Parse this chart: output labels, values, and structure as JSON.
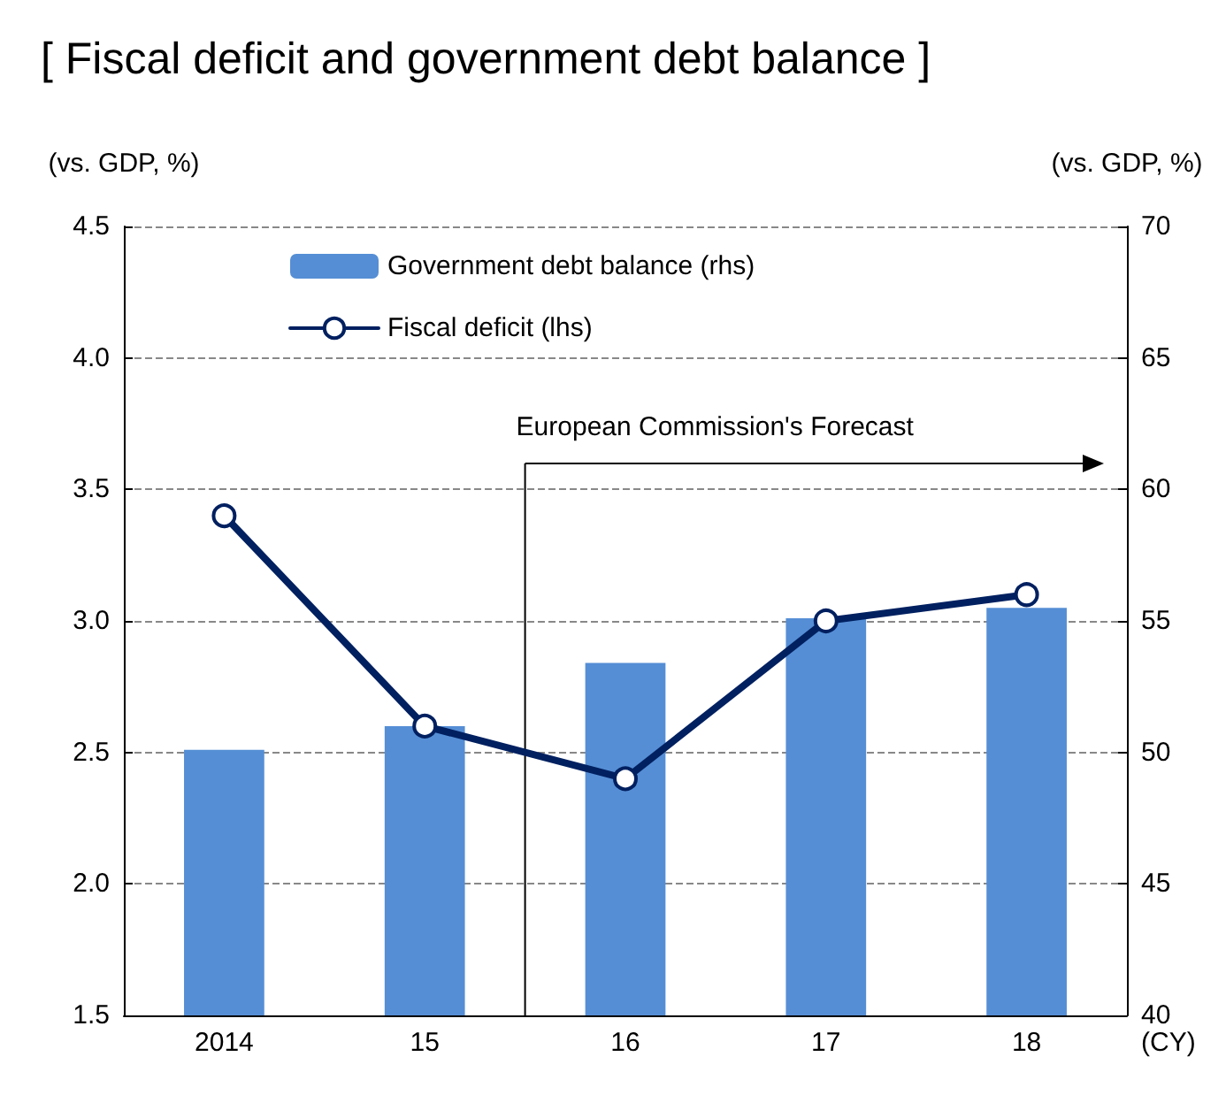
{
  "chart_data": {
    "type": "bar",
    "title": "[ Fiscal deficit and government debt balance ]",
    "ylabel": "(vs. GDP, %)",
    "y2label": "(vs. GDP, %)",
    "xlabel": "(CY)",
    "categories": [
      "2014",
      "15",
      "16",
      "17",
      "18"
    ],
    "series": [
      {
        "name": "Government debt balance (rhs)",
        "axis": "y2",
        "color": "#558ed5",
        "values": [
          50.1,
          51.0,
          53.4,
          55.1,
          55.5
        ]
      },
      {
        "name": "Fiscal deficit (lhs)",
        "type": "line",
        "color": "#002060",
        "marker": "circle",
        "values": [
          3.4,
          2.6,
          2.4,
          3.0,
          3.1
        ]
      }
    ],
    "ylim": [
      1.5,
      4.5
    ],
    "yticks": [
      1.5,
      {
        "value": 2,
        "label": "2.0"
      },
      2.5,
      {
        "value": 3,
        "label": "3.0"
      },
      3.5,
      {
        "value": 4,
        "label": "4.0"
      },
      4.5
    ],
    "y2lim": [
      40,
      70
    ],
    "y2ticks": [
      40,
      45,
      50,
      55,
      60,
      65,
      70
    ],
    "grid": "y",
    "legend": "top left",
    "annotations": [
      "European Commission's Forecast"
    ]
  }
}
